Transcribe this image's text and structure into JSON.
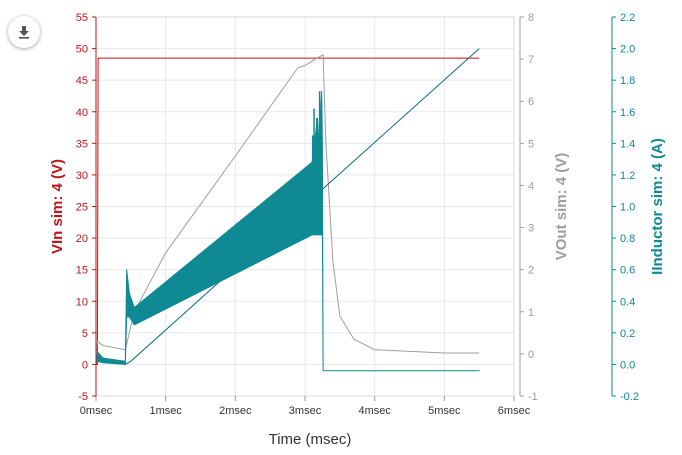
{
  "toolbar": {
    "download_icon": "download-icon"
  },
  "chart_data": {
    "type": "line",
    "xlabel": "Time (msec)",
    "x_ticks": [
      "0msec",
      "1msec",
      "2msec",
      "3msec",
      "4msec",
      "5msec",
      "6msec"
    ],
    "xlim": [
      0,
      6
    ],
    "grid": true,
    "axes": {
      "vin": {
        "label": "VIn sim: 4 (V)",
        "color": "#c0151b",
        "ylim": [
          -5,
          55
        ],
        "ticks": [
          "-5",
          "0",
          "5",
          "10",
          "15",
          "20",
          "25",
          "30",
          "35",
          "40",
          "45",
          "50",
          "55"
        ]
      },
      "vout": {
        "label": "VOut sim: 4 (V)",
        "color": "#9e9e9e",
        "ylim": [
          -1,
          8
        ],
        "ticks": [
          "-1",
          "0",
          "1",
          "2",
          "3",
          "4",
          "5",
          "6",
          "7",
          "8"
        ]
      },
      "il": {
        "label": "IInductor sim: 4 (A)",
        "color": "#0f8a94",
        "ylim": [
          -0.2,
          2.2
        ],
        "ticks": [
          "-0.2",
          "0.0",
          "0.2",
          "0.4",
          "0.6",
          "0.8",
          "1.0",
          "1.2",
          "1.4",
          "1.6",
          "1.8",
          "2.0",
          "2.2"
        ]
      }
    },
    "series": [
      {
        "axis": "vin",
        "color": "#c0151b",
        "x": [
          0,
          0.02,
          0.03,
          5.5
        ],
        "y": [
          0,
          0,
          48.5,
          48.5
        ]
      },
      {
        "axis": "vout",
        "color": "#9e9e9e",
        "x": [
          0,
          0.02,
          0.1,
          0.42,
          0.45,
          0.55,
          1.0,
          2.0,
          2.9,
          3.0,
          3.1,
          3.2,
          3.26,
          3.3,
          3.4,
          3.5,
          3.7,
          4.0,
          5.0,
          5.5
        ],
        "y": [
          0,
          0.3,
          0.2,
          0.1,
          0.3,
          1.0,
          2.4,
          4.7,
          6.8,
          6.85,
          6.95,
          7.05,
          7.1,
          5.0,
          2.2,
          0.9,
          0.35,
          0.1,
          0.02,
          0.02
        ]
      },
      {
        "axis": "il",
        "color": "#0f6e7a",
        "x": [
          0,
          0.02,
          0.42,
          0.5,
          5.5
        ],
        "y": [
          0,
          0.05,
          0.0,
          0.02,
          2.0
        ]
      },
      {
        "axis": "il",
        "color": "#0f8a94",
        "envelope": true,
        "x": [
          0,
          0.02,
          0.1,
          0.42,
          0.44,
          0.48,
          0.55,
          3.1,
          3.18,
          3.2,
          3.24,
          3.25,
          3.26,
          3.5,
          5.5
        ],
        "upper": [
          0,
          0.08,
          0.04,
          0.02,
          0.6,
          0.45,
          0.36,
          1.28,
          1.56,
          1.4,
          1.73,
          1.4,
          -0.04,
          -0.04,
          -0.04
        ],
        "lower": [
          0,
          0.02,
          0.01,
          0.0,
          0.3,
          0.3,
          0.25,
          0.82,
          0.82,
          0.82,
          0.82,
          0.82,
          -0.04,
          -0.04,
          -0.04
        ]
      }
    ]
  }
}
